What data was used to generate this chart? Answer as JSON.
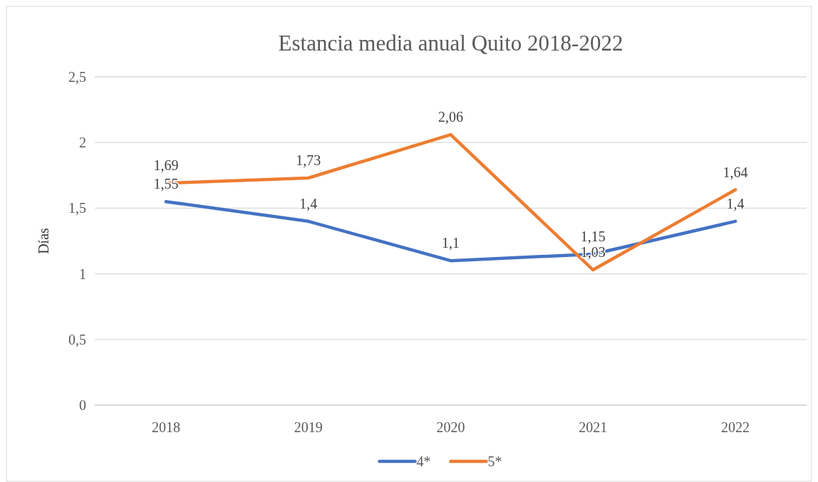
{
  "chart_data": {
    "type": "line",
    "title": "Estancia media anual Quito 2018-2022",
    "ylabel": "Días",
    "categories": [
      "2018",
      "2019",
      "2020",
      "2021",
      "2022"
    ],
    "series": [
      {
        "name": "4*",
        "color": "#4472c4",
        "values": [
          1.55,
          1.4,
          1.1,
          1.15,
          1.4
        ],
        "value_labels": [
          "1,55",
          "1,4",
          "1,1",
          "1,15",
          "1,4"
        ]
      },
      {
        "name": "5*",
        "color": "#ed7d31",
        "values": [
          1.69,
          1.73,
          2.06,
          1.03,
          1.64
        ],
        "value_labels": [
          "1,69",
          "1,73",
          "2,06",
          "1,03",
          "1,64"
        ]
      }
    ],
    "ylim": [
      0,
      2.5
    ],
    "yticks": [
      0,
      {
        "value": 0.5,
        "label": "0,5"
      },
      1,
      {
        "value": 1.5,
        "label": "1,5"
      },
      2,
      {
        "value": 2.5,
        "label": "2,5"
      }
    ],
    "grid": "y",
    "legend": "bottom",
    "marker": "none",
    "line_style": "solid"
  }
}
